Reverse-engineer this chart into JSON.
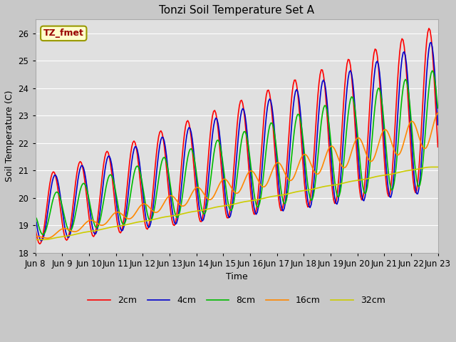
{
  "title": "Tonzi Soil Temperature Set A",
  "xlabel": "Time",
  "ylabel": "Soil Temperature (C)",
  "annotation": "TZ_fmet",
  "ylim": [
    18.0,
    26.5
  ],
  "x_tick_labels": [
    "Jun 8",
    "Jun 9",
    "Jun 10",
    "Jun 11",
    "Jun 12",
    "Jun 13",
    "Jun 14",
    "Jun 15",
    "Jun 16",
    "Jun 17",
    "Jun 18",
    "Jun 19",
    "Jun 20",
    "Jun 21",
    "Jun 22",
    "Jun 23"
  ],
  "series_colors": [
    "#ff0000",
    "#0000cc",
    "#00bb00",
    "#ff8800",
    "#cccc00"
  ],
  "series_labels": [
    "2cm",
    "4cm",
    "8cm",
    "16cm",
    "32cm"
  ],
  "fig_facecolor": "#c8c8c8",
  "plot_bg_color": "#e0e0e0",
  "title_fontsize": 11,
  "annotation_facecolor": "#ffffcc",
  "annotation_edgecolor": "#999900",
  "annotation_textcolor": "#990000",
  "grid_color": "#ffffff",
  "legend_fontsize": 9
}
